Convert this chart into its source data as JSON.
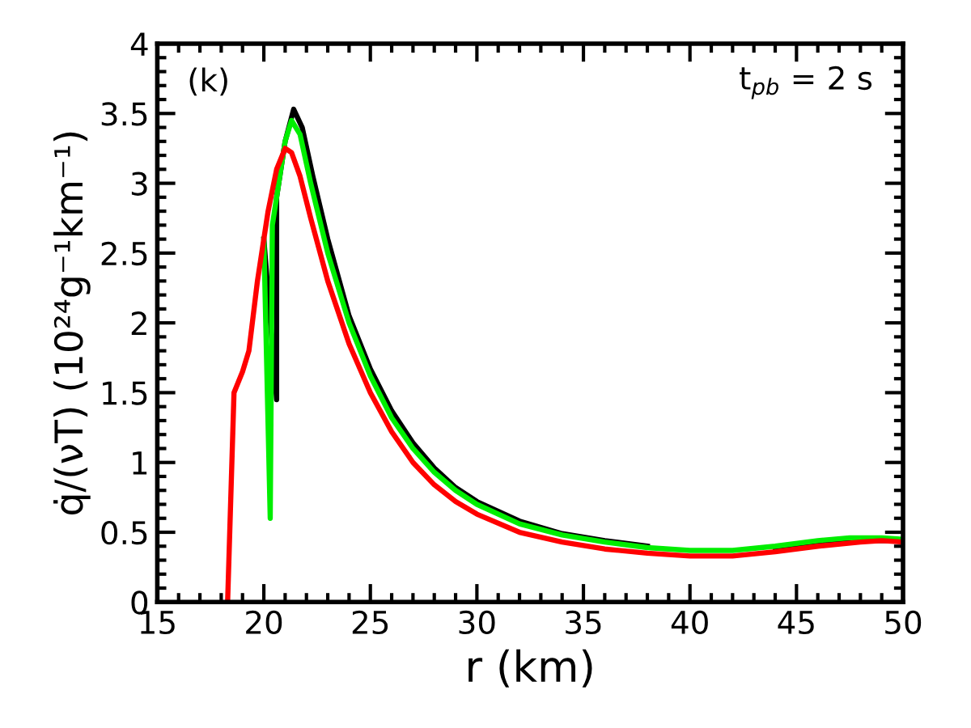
{
  "chart_data": {
    "type": "line",
    "xlabel": "r (km)",
    "ylabel": "q̇/(νT) (10²⁴g⁻¹km⁻¹)",
    "annotations": [
      "(k)",
      "t$_{pb}$ = 2 s"
    ],
    "xlim": [
      15,
      50
    ],
    "xticks": [
      15,
      20,
      25,
      30,
      35,
      40,
      45,
      50
    ],
    "ylim": [
      0,
      4
    ],
    "yticks": [
      0,
      0.5,
      1,
      1.5,
      2,
      2.5,
      3,
      3.5,
      4
    ],
    "grid": false,
    "legend": false,
    "line_style": "solid",
    "marker": "none",
    "series": [
      {
        "color": "#000000",
        "x": [
          20.0,
          20.6,
          20.6,
          21.0,
          21.4,
          21.8,
          22.3,
          23,
          24,
          25,
          26,
          27,
          28,
          29,
          30,
          32,
          34,
          36,
          38,
          40,
          42,
          44,
          46,
          48,
          50
        ],
        "values": [
          2.6,
          1.45,
          2.9,
          3.3,
          3.53,
          3.4,
          3.05,
          2.6,
          2.05,
          1.67,
          1.37,
          1.14,
          0.96,
          0.82,
          0.72,
          0.58,
          0.49,
          0.44,
          0.4,
          null,
          null,
          0.39,
          0.42,
          0.44,
          0.44
        ]
      },
      {
        "color": "#00ee00",
        "x": [
          20.0,
          20.3,
          20.4,
          20.7,
          21.0,
          21.3,
          21.7,
          22.2,
          23,
          24,
          25,
          26,
          27,
          28,
          29,
          30,
          32,
          34,
          36,
          38,
          40,
          42,
          44,
          46,
          47.5,
          49,
          50
        ],
        "values": [
          2.6,
          0.6,
          2.7,
          3.0,
          3.3,
          3.45,
          3.35,
          3.0,
          2.5,
          2.0,
          1.62,
          1.32,
          1.1,
          0.93,
          0.8,
          0.7,
          0.56,
          0.48,
          0.43,
          0.39,
          0.37,
          0.37,
          0.4,
          0.44,
          0.46,
          0.46,
          0.45
        ]
      },
      {
        "color": "#ff0000",
        "x": [
          18.3,
          18.6,
          19.0,
          19.3,
          19.7,
          20.2,
          20.6,
          21.0,
          21.3,
          21.7,
          22.2,
          23,
          24,
          25,
          26,
          27,
          28,
          29,
          30,
          32,
          34,
          36,
          38,
          40,
          42,
          44,
          46,
          48,
          49,
          50
        ],
        "values": [
          0,
          1.5,
          1.65,
          1.8,
          2.3,
          2.8,
          3.1,
          3.25,
          3.22,
          3.05,
          2.75,
          2.3,
          1.85,
          1.5,
          1.22,
          1.0,
          0.84,
          0.72,
          0.63,
          0.5,
          0.43,
          0.38,
          0.35,
          0.33,
          0.33,
          0.36,
          0.4,
          0.43,
          0.44,
          0.43
        ]
      }
    ]
  }
}
